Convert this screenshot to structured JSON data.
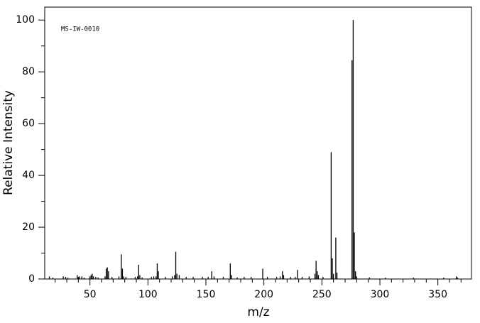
{
  "chart_data": {
    "type": "stick",
    "annotation": "MS-IW-0010",
    "xlabel": "m/z",
    "ylabel": "Relative Intensity",
    "x": [
      15,
      18,
      27,
      29,
      31,
      39,
      40,
      41,
      43,
      45,
      50,
      51,
      52,
      53,
      55,
      57,
      63,
      64,
      65,
      66,
      69,
      75,
      77,
      78,
      79,
      81,
      89,
      91,
      92,
      93,
      95,
      103,
      105,
      107,
      108,
      109,
      115,
      121,
      123,
      124,
      125,
      127,
      133,
      139,
      147,
      152,
      155,
      157,
      165,
      171,
      172,
      177,
      183,
      189,
      199,
      203,
      211,
      214,
      216,
      217,
      223,
      227,
      229,
      233,
      239,
      244,
      245,
      246,
      247,
      251,
      258,
      259,
      260,
      262,
      263,
      276,
      277,
      278,
      279,
      280,
      291,
      305,
      329,
      355,
      366,
      367
    ],
    "values": [
      1,
      0.5,
      1,
      0.8,
      0.5,
      1.5,
      0.8,
      1,
      1,
      0.5,
      1,
      1.5,
      2,
      1,
      0.8,
      0.6,
      1,
      4,
      4.5,
      3,
      0.8,
      1,
      9.5,
      4,
      1,
      0.8,
      0.8,
      1,
      5.5,
      1.5,
      0.6,
      0.8,
      1,
      1,
      6,
      3,
      0.8,
      1,
      1.5,
      10.5,
      2,
      1.5,
      0.8,
      0.8,
      0.8,
      0.8,
      3,
      1,
      0.8,
      6,
      1.5,
      0.6,
      0.8,
      0.8,
      4,
      0.8,
      0.8,
      1,
      3,
      1.5,
      0.8,
      0.8,
      3.5,
      0.8,
      1,
      2,
      7,
      3,
      1.5,
      0.8,
      49,
      8,
      2,
      16,
      2.5,
      84.5,
      100,
      18,
      3,
      1,
      0.6,
      0.5,
      0.5,
      0.5,
      1,
      0.5
    ],
    "color": "#000000",
    "xlim": [
      11,
      379
    ],
    "ylim": [
      0,
      105
    ],
    "xticks": [
      50,
      100,
      150,
      200,
      250,
      300,
      350
    ],
    "xticks_minor": [
      20,
      30,
      40,
      60,
      70,
      80,
      90,
      110,
      120,
      130,
      140,
      160,
      170,
      180,
      190,
      210,
      220,
      230,
      240,
      260,
      270,
      280,
      290,
      310,
      320,
      330,
      340,
      360,
      370
    ],
    "yticks": [
      0,
      20,
      40,
      60,
      80,
      100
    ],
    "yticks_minor": [
      10,
      30,
      50,
      70,
      90
    ]
  }
}
